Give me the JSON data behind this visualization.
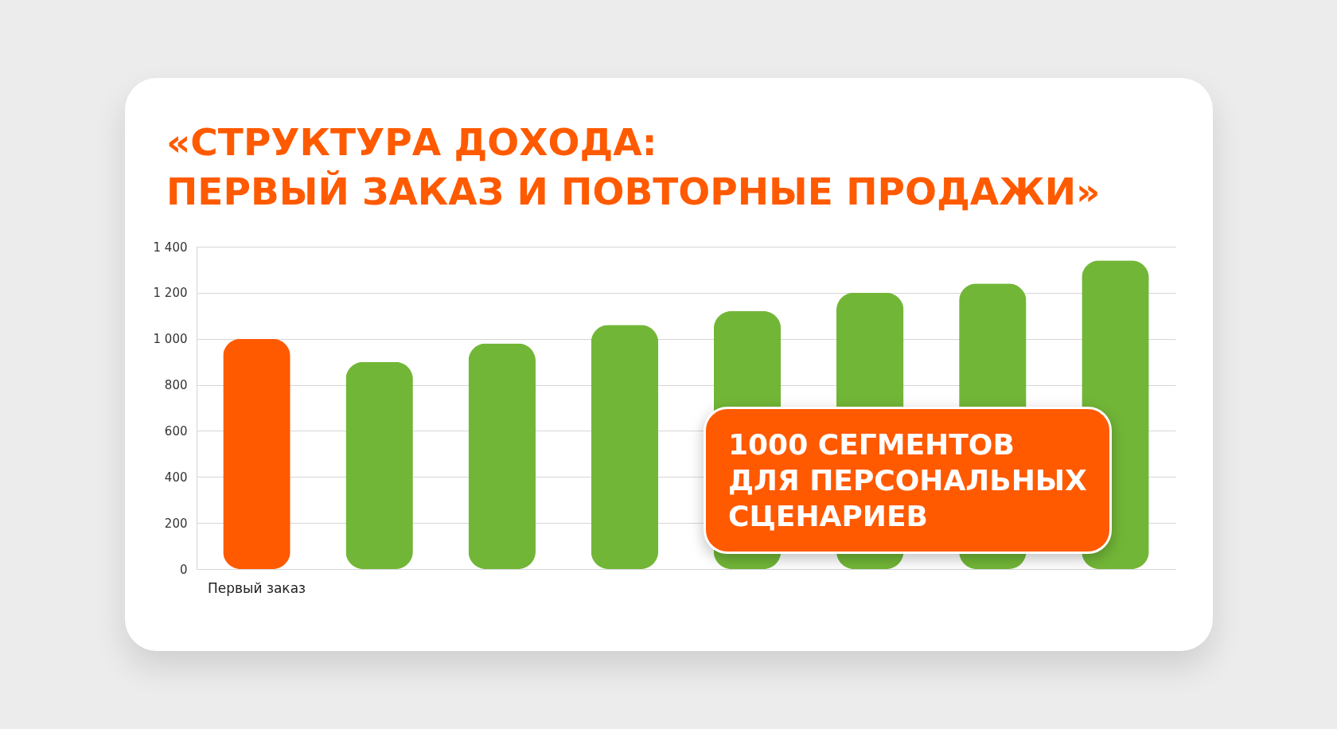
{
  "chart_data": {
    "type": "bar",
    "title": "«СТРУКТУРА ДОХОДА:\nПЕРВЫЙ ЗАКАЗ И ПОВТОРНЫЕ ПРОДАЖИ»",
    "categories": [
      "Первый заказ",
      null,
      null,
      null,
      null,
      null,
      null,
      null
    ],
    "values": [
      1000,
      900,
      980,
      1060,
      1120,
      1200,
      1240,
      1340
    ],
    "colors": [
      "#ff5a00",
      "#72b637",
      "#72b637",
      "#72b637",
      "#72b637",
      "#72b637",
      "#72b637",
      "#72b637"
    ],
    "ylim": [
      0,
      1400
    ],
    "yticks": [
      0,
      200,
      400,
      600,
      800,
      {
        "value": 1000,
        "label": "1 000"
      },
      {
        "value": 1200,
        "label": "1 200"
      },
      {
        "value": 1400,
        "label": "1 400"
      }
    ],
    "grid": "y",
    "annotations": [
      "1000 СЕГМЕНТОВ\nДЛЯ ПЕРСОНАЛЬНЫХ\nСЦЕНАРИЕВ"
    ]
  }
}
